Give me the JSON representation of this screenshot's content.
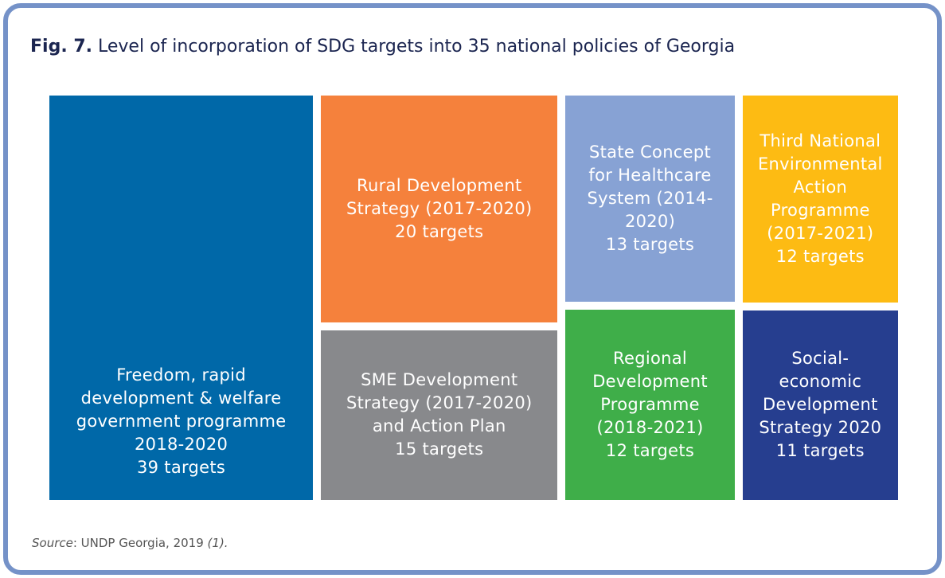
{
  "chart_data": {
    "type": "treemap",
    "figure_label": "Fig. 7.",
    "title": "Level of incorporation of SDG targets into 35 national policies of Georgia",
    "categories": [
      "Freedom, rapid development & welfare government programme 2018-2020",
      "Rural Development Strategy (2017-2020)",
      "SME Development Strategy (2017-2020) and Action Plan",
      "State Concept for Healthcare System (2014-2020)",
      "Regional Development Programme (2018-2021)",
      "Third National Environmental Action Programme (2017-2021)",
      "Social-economic Development Strategy 2020"
    ],
    "values": [
      39,
      20,
      15,
      13,
      12,
      12,
      11
    ],
    "value_labels": [
      "39 targets",
      "20 targets",
      "15 targets",
      "13 targets",
      "12 targets",
      "12 targets",
      "11 targets"
    ],
    "colors": [
      "#0068a8",
      "#f5813c",
      "#88898c",
      "#87a2d4",
      "#3fae49",
      "#fdbb13",
      "#263e8f"
    ],
    "source": {
      "label": "Source",
      "text": ": UNDP Georgia, 2019 ",
      "ref": "(1)."
    }
  }
}
